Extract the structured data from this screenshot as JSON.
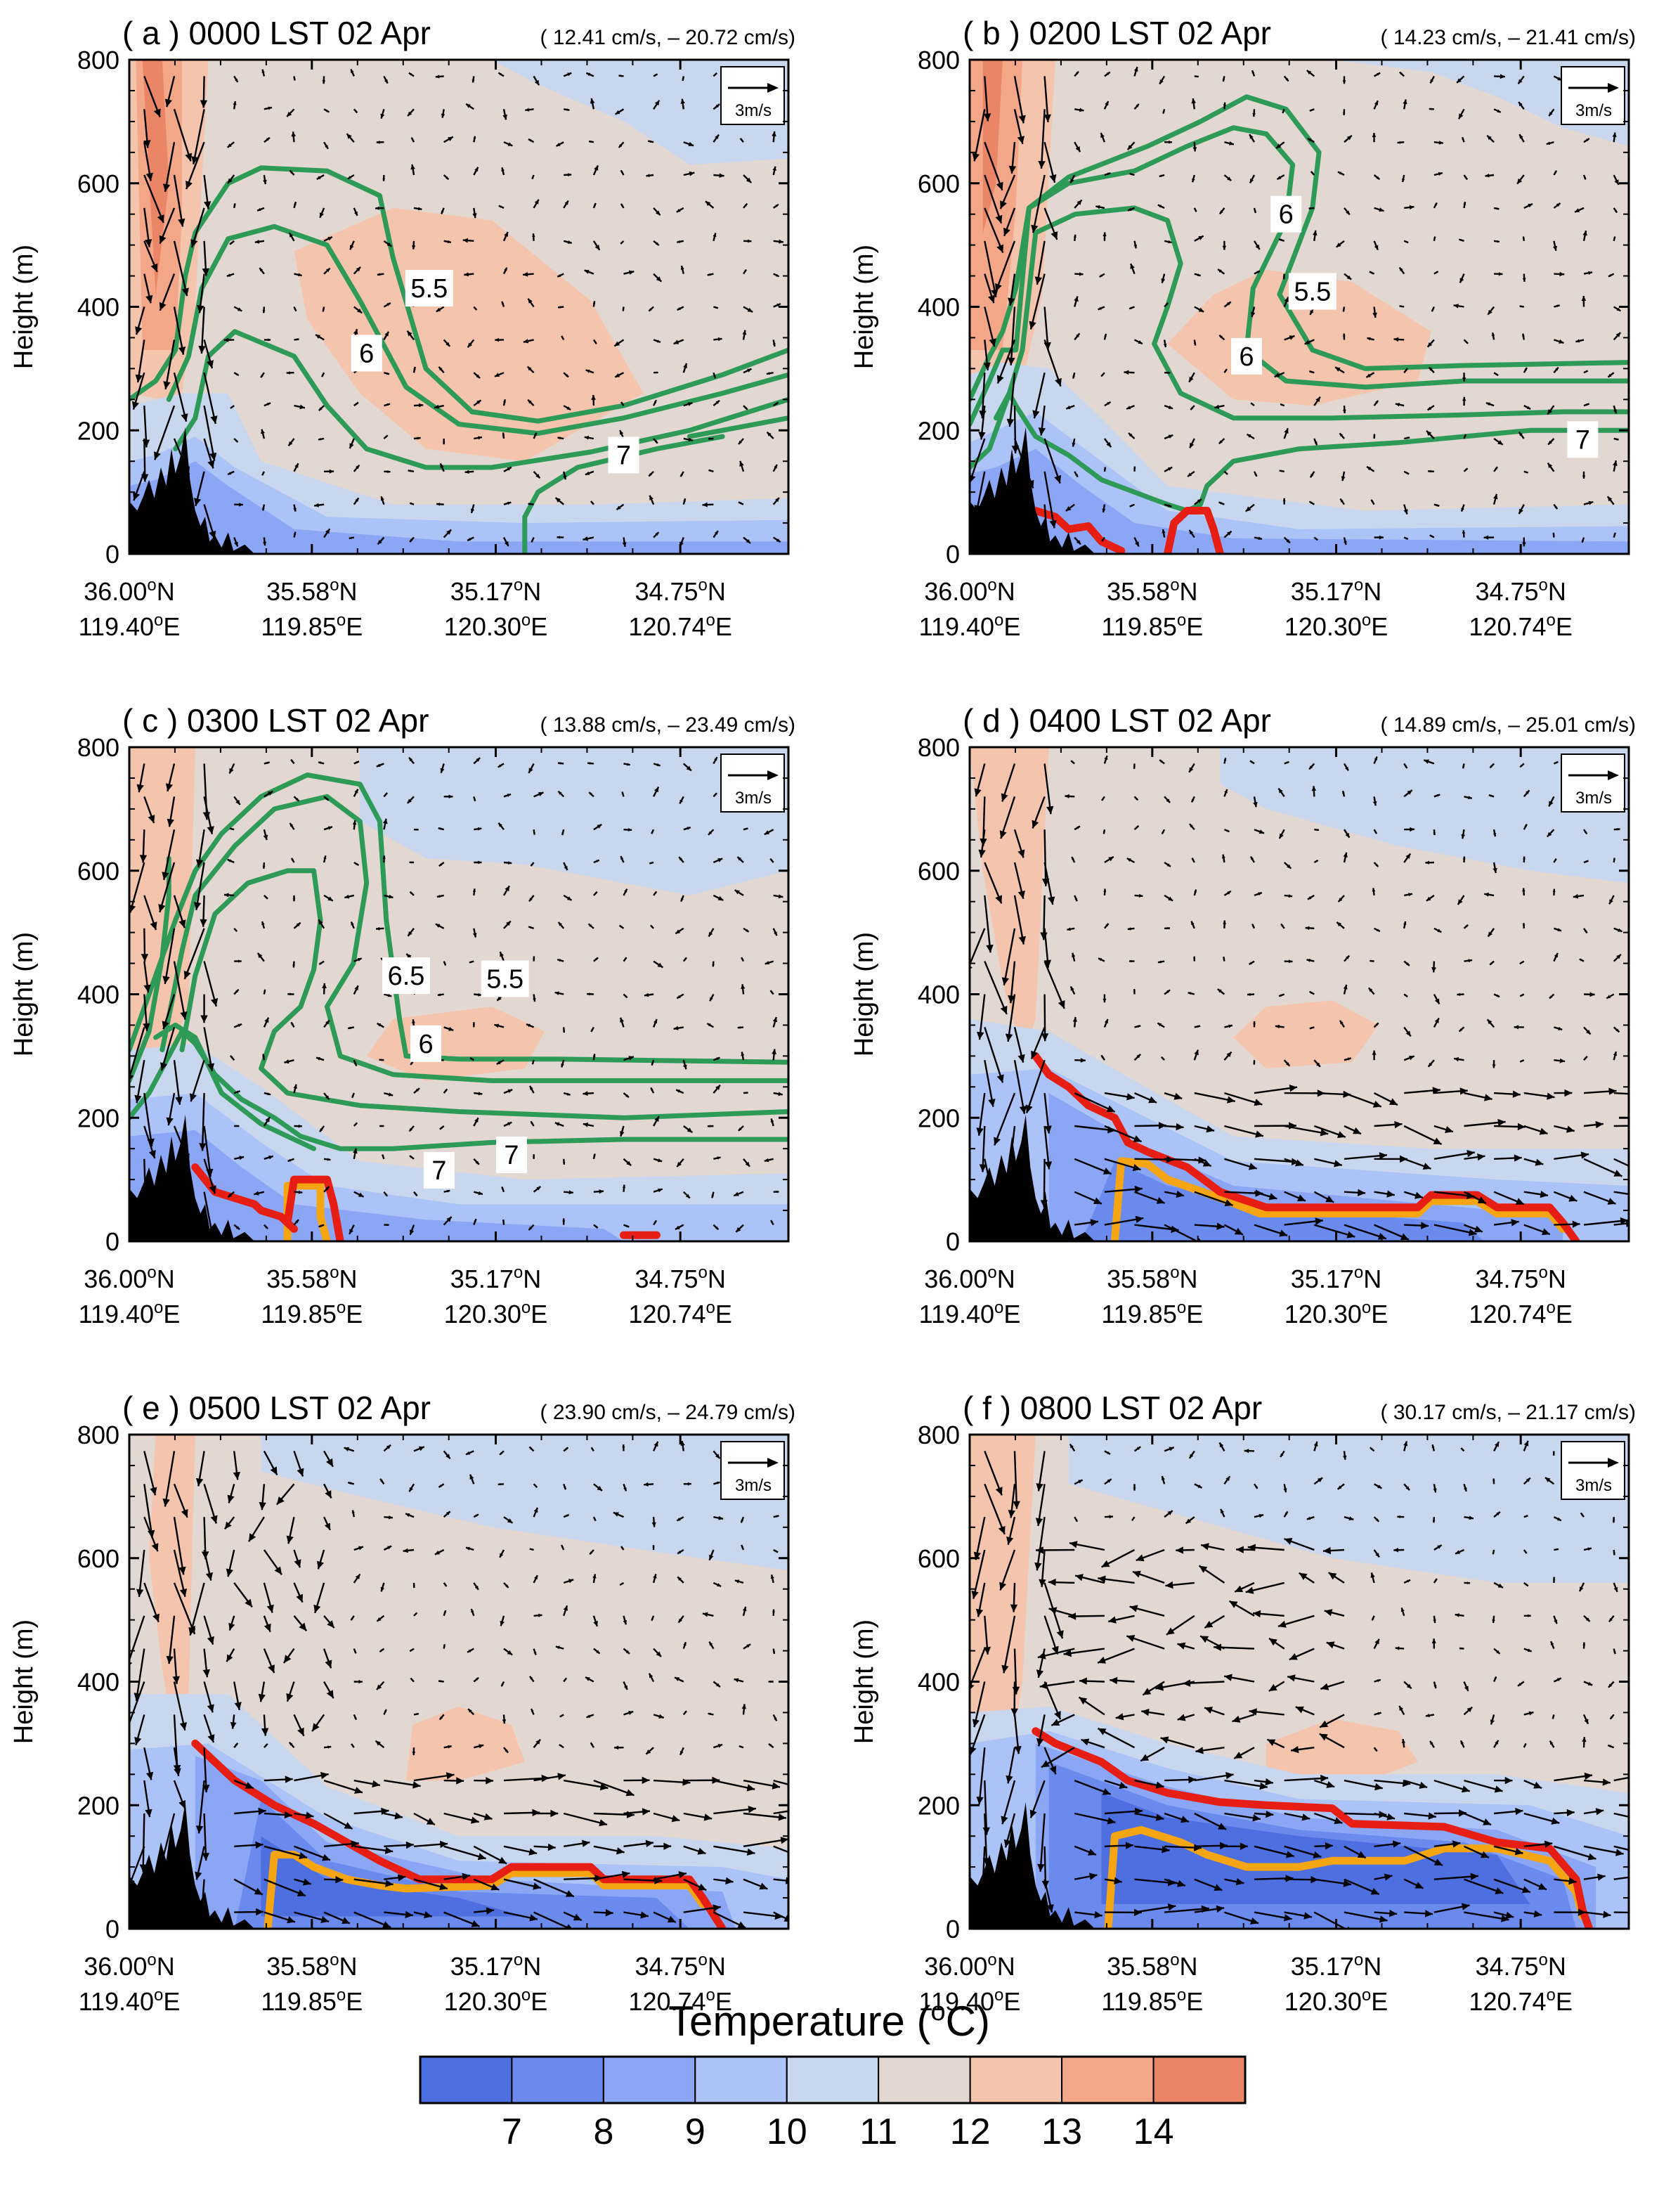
{
  "chart_data": {
    "type": "contourf",
    "figure_title": "Temperature (oC)",
    "colorbar": {
      "title_main": "Temperature (",
      "title_sup": "o",
      "title_end": "C)",
      "tick_labels": [
        "7",
        "8",
        "9",
        "10",
        "11",
        "12",
        "13",
        "14"
      ],
      "bins": [
        {
          "label": "<7",
          "color": "#4d6fe0"
        },
        {
          "label": "7-8",
          "color": "#6b8aee"
        },
        {
          "label": "8-9",
          "color": "#8aa6f5"
        },
        {
          "label": "9-10",
          "color": "#acc3f8"
        },
        {
          "label": "10-11",
          "color": "#c9d7ee"
        },
        {
          "label": "11-12",
          "color": "#e3d7d2"
        },
        {
          "label": "12-13",
          "color": "#f4c4ac"
        },
        {
          "label": "13-14",
          "color": "#f3a688"
        },
        {
          "label": ">14",
          "color": "#ea8566"
        }
      ]
    },
    "axes": {
      "ylabel": "Height (m)",
      "ylim": [
        0,
        800
      ],
      "yticks": [
        "0",
        "200",
        "400",
        "600",
        "800"
      ],
      "xticks": [
        {
          "lat": "36.00",
          "lon": "119.40"
        },
        {
          "lat": "35.58",
          "lon": "119.85"
        },
        {
          "lat": "35.17",
          "lon": "120.30"
        },
        {
          "lat": "34.75",
          "lon": "120.74"
        }
      ],
      "deg_symbol": "o",
      "lat_suffix": "N",
      "lon_suffix": "E"
    },
    "vector_ref_label": "3m/s",
    "colors": {
      "theta_contour": "#2e9a58",
      "fog_top_red": "#e61e14",
      "fog_top_orange": "#f5a511",
      "terrain": "#000000"
    },
    "panels": [
      {
        "id": "a",
        "title": "( a ) 0000 LST 02 Apr",
        "vector_mean": "( 12.41 cm/s, – 20.72 cm/s)",
        "contour_labels": [
          "5.5",
          "6",
          "7"
        ],
        "fog_top_height_m": null
      },
      {
        "id": "b",
        "title": "( b ) 0200 LST 02 Apr",
        "vector_mean": "( 14.23 cm/s, – 21.41 cm/s)",
        "contour_labels": [
          "6",
          "5.5",
          "6",
          "7"
        ],
        "fog_top_height_m": 60
      },
      {
        "id": "c",
        "title": "( c ) 0300 LST 02 Apr",
        "vector_mean": "( 13.88 cm/s, – 23.49 cm/s)",
        "contour_labels": [
          "6.5",
          "5.5",
          "6",
          "7",
          "7"
        ],
        "fog_top_height_m": 90
      },
      {
        "id": "d",
        "title": "( d ) 0400 LST 02 Apr",
        "vector_mean": "( 14.89 cm/s, – 25.01 cm/s)",
        "contour_labels": [],
        "fog_top_height_m": 120
      },
      {
        "id": "e",
        "title": "( e ) 0500 LST 02 Apr",
        "vector_mean": "( 23.90 cm/s, – 24.79 cm/s)",
        "contour_labels": [],
        "fog_top_height_m": 100
      },
      {
        "id": "f",
        "title": "( f ) 0800 LST 02 Apr",
        "vector_mean": "( 30.17 cm/s, – 21.17 cm/s)",
        "contour_labels": [],
        "fog_top_height_m": 190
      }
    ]
  }
}
